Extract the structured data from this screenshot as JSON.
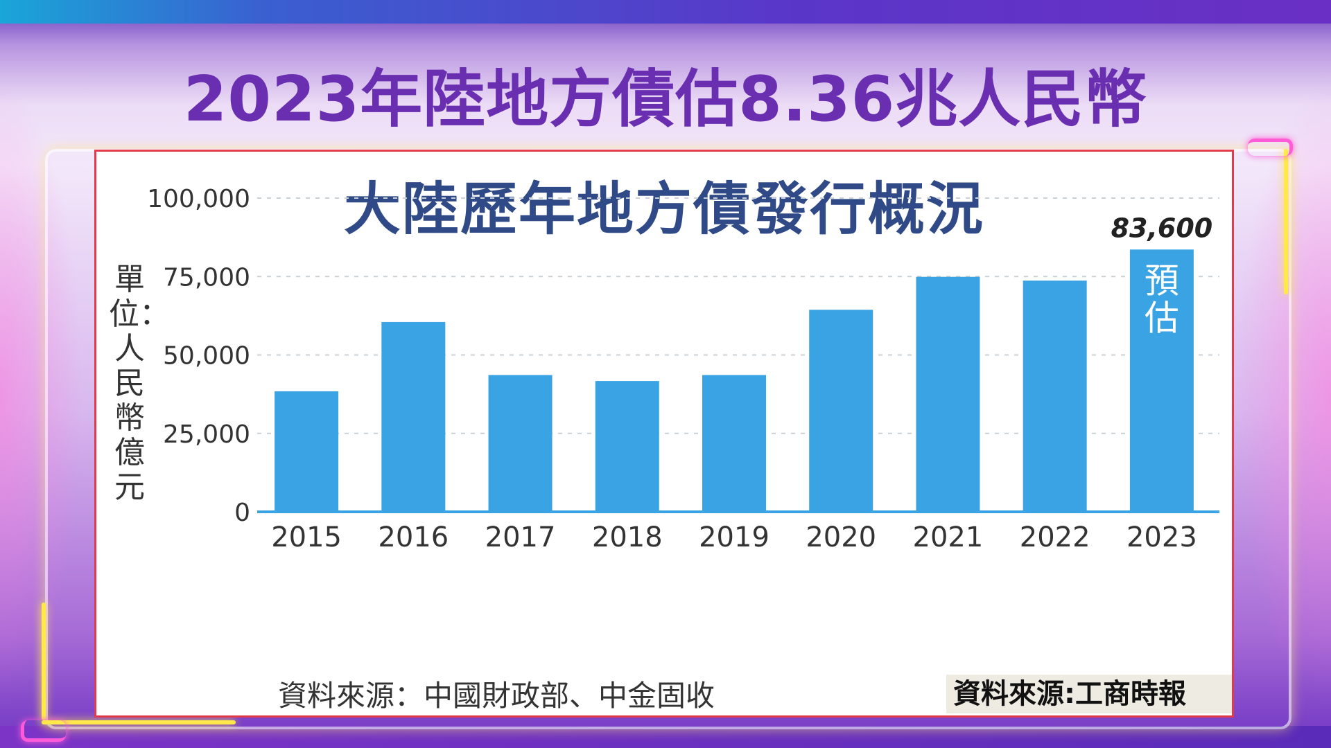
{
  "page": {
    "title": "2023年陸地方債估8.36兆人民幣",
    "source_note": "資料來源:工商時報"
  },
  "chart_data": {
    "type": "bar",
    "title": "大陸歷年地方債發行概況",
    "ylabel": "單位：人民幣億元",
    "categories": [
      "2015",
      "2016",
      "2017",
      "2018",
      "2019",
      "2020",
      "2021",
      "2022",
      "2023"
    ],
    "values": [
      38400,
      60500,
      43600,
      41700,
      43600,
      64400,
      74900,
      73700,
      83600
    ],
    "ylim": [
      0,
      100000
    ],
    "yticks": [
      0,
      25000,
      50000,
      75000,
      100000
    ],
    "ytick_labels": [
      "0",
      "25,000",
      "50,000",
      "75,000",
      "100,000"
    ],
    "grid": "horizontal dashed",
    "bar_color": "#3aa3e3",
    "annotations": [
      {
        "category": "2023",
        "value_label": "83,600",
        "inside_label": "預估"
      }
    ],
    "source": "資料來源：中國財政部、中金固收"
  }
}
